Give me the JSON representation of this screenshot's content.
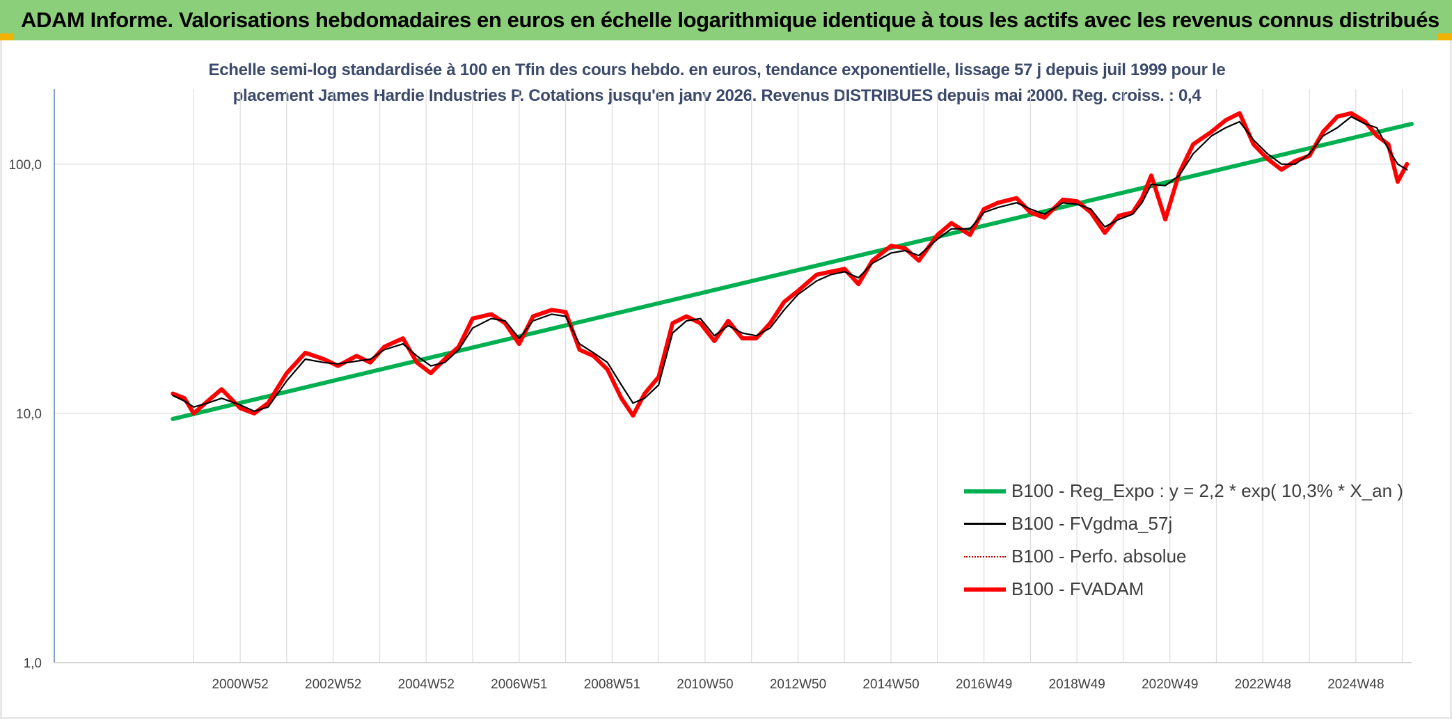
{
  "header": {
    "title": "ADAM Informe. Valorisations hebdomadaires en euros en échelle logarithmique identique à tous les actifs avec les revenus connus distribués"
  },
  "chart_data": {
    "type": "line",
    "title": "Echelle semi-log standardisée à 100 en Tfin des cours hebdo. en euros, tendance exponentielle, lissage 57 j depuis juil 1999 pour le",
    "subtitle": "placement James Hardie Industries P. Cotations jusqu'en janv 2026. Revenus DISTRIBUES depuis mai 2000. Reg. croiss. : 0,4",
    "y_scale": "log",
    "ylim": [
      1,
      200
    ],
    "xlim": [
      1996.0,
      2025.2
    ],
    "y_ticks": [
      {
        "value": 1,
        "label": "1,0"
      },
      {
        "value": 10,
        "label": "10,0"
      },
      {
        "value": 100,
        "label": "100,0"
      }
    ],
    "x_ticks": [
      {
        "value": 2000.0,
        "label": "2000W52"
      },
      {
        "value": 2002.0,
        "label": "2002W52"
      },
      {
        "value": 2004.0,
        "label": "2004W52"
      },
      {
        "value": 2006.0,
        "label": "2006W51"
      },
      {
        "value": 2008.0,
        "label": "2008W51"
      },
      {
        "value": 2010.0,
        "label": "2010W50"
      },
      {
        "value": 2012.0,
        "label": "2012W50"
      },
      {
        "value": 2014.0,
        "label": "2014W50"
      },
      {
        "value": 2016.0,
        "label": "2016W49"
      },
      {
        "value": 2018.0,
        "label": "2018W49"
      },
      {
        "value": 2020.0,
        "label": "2020W49"
      },
      {
        "value": 2022.0,
        "label": "2022W48"
      },
      {
        "value": 2024.0,
        "label": "2024W48"
      }
    ],
    "grid": "vertical and horizontal",
    "legend_position": "bottom-right",
    "series": [
      {
        "name": "B100 - Reg_Expo : y = 2,2 * exp( 10,3% *  X_an )",
        "color": "#00b050",
        "style": "solid-thick",
        "x": [
          1998.55,
          2025.2
        ],
        "y": [
          9.5,
          145
        ]
      },
      {
        "name": "B100 - FVgdma_57j",
        "color": "#000000",
        "style": "solid-thin",
        "x": [
          1998.55,
          1998.8,
          1999.0,
          1999.3,
          1999.6,
          2000.0,
          2000.3,
          2000.6,
          2001.0,
          2001.4,
          2001.8,
          2002.1,
          2002.5,
          2002.8,
          2003.1,
          2003.5,
          2003.8,
          2004.1,
          2004.4,
          2004.7,
          2005.0,
          2005.4,
          2005.7,
          2006.0,
          2006.3,
          2006.7,
          2007.0,
          2007.3,
          2007.6,
          2007.9,
          2008.2,
          2008.45,
          2008.7,
          2009.0,
          2009.3,
          2009.6,
          2009.9,
          2010.2,
          2010.5,
          2010.8,
          2011.1,
          2011.4,
          2011.7,
          2012.0,
          2012.4,
          2012.7,
          2013.0,
          2013.3,
          2013.6,
          2014.0,
          2014.3,
          2014.6,
          2015.0,
          2015.3,
          2015.7,
          2016.0,
          2016.3,
          2016.7,
          2017.0,
          2017.3,
          2017.7,
          2018.0,
          2018.3,
          2018.6,
          2018.9,
          2019.2,
          2019.4,
          2019.6,
          2019.9,
          2020.2,
          2020.5,
          2020.9,
          2021.2,
          2021.5,
          2021.8,
          2022.1,
          2022.4,
          2022.7,
          2023.0,
          2023.3,
          2023.6,
          2023.9,
          2024.2,
          2024.45,
          2024.7,
          2024.9,
          2025.1
        ],
        "y": [
          11.8,
          11.2,
          10.6,
          11.0,
          11.5,
          10.8,
          10.2,
          10.6,
          13.5,
          16.5,
          16.0,
          15.8,
          16.2,
          16.5,
          18.0,
          19.0,
          17.0,
          15.5,
          16.0,
          18.0,
          22.0,
          24.0,
          23.5,
          20.0,
          23.5,
          25.0,
          24.5,
          19.0,
          17.5,
          16.0,
          13.0,
          11.0,
          11.5,
          13.0,
          21.0,
          23.5,
          24.0,
          20.5,
          22.5,
          21.0,
          20.5,
          22.0,
          26.0,
          30.0,
          34.0,
          36.0,
          37.0,
          35.0,
          40.0,
          44.0,
          45.0,
          43.0,
          50.0,
          55.0,
          55.0,
          64.0,
          67.0,
          70.0,
          66.0,
          63.0,
          70.0,
          69.0,
          66.0,
          56.0,
          60.0,
          63.0,
          70.0,
          83.0,
          82.0,
          90.0,
          110.0,
          130.0,
          140.0,
          148.0,
          125.0,
          110.0,
          100.0,
          100.0,
          110.0,
          130.0,
          140.0,
          155.0,
          145.0,
          140.0,
          115.0,
          100.0,
          95.0
        ]
      },
      {
        "name": "B100 - Perfo. absolue",
        "color": "#c00000",
        "style": "dotted",
        "x": [
          1998.55,
          1998.8,
          1999.0,
          1999.3,
          1999.6,
          2000.0,
          2000.3,
          2000.6,
          2001.0,
          2001.4,
          2001.8,
          2002.1,
          2002.5,
          2002.8,
          2003.1,
          2003.5,
          2003.8,
          2004.1,
          2004.4,
          2004.7,
          2005.0,
          2005.4,
          2005.7,
          2006.0,
          2006.3,
          2006.7,
          2007.0,
          2007.3,
          2007.6,
          2007.9,
          2008.2,
          2008.45,
          2008.7,
          2009.0,
          2009.3,
          2009.6,
          2009.9,
          2010.2,
          2010.5,
          2010.8,
          2011.1,
          2011.4,
          2011.7,
          2012.0,
          2012.4,
          2012.7,
          2013.0,
          2013.3,
          2013.6,
          2014.0,
          2014.3,
          2014.6,
          2015.0,
          2015.3,
          2015.7,
          2016.0,
          2016.3,
          2016.7,
          2017.0,
          2017.3,
          2017.7,
          2018.0,
          2018.3,
          2018.6,
          2018.9,
          2019.2,
          2019.4,
          2019.6,
          2019.9,
          2020.2,
          2020.5,
          2020.9,
          2021.2,
          2021.5,
          2021.8,
          2022.1,
          2022.4,
          2022.7,
          2023.0,
          2023.3,
          2023.6,
          2023.9,
          2024.2,
          2024.45,
          2024.7,
          2024.9,
          2025.1
        ],
        "y": [
          12.0,
          11.5,
          10.0,
          11.2,
          12.5,
          10.5,
          10.0,
          11.0,
          14.5,
          17.5,
          16.5,
          15.5,
          17.0,
          16.0,
          18.5,
          20.0,
          16.0,
          14.5,
          16.5,
          18.5,
          24.0,
          25.0,
          23.0,
          19.0,
          24.5,
          26.0,
          25.5,
          18.0,
          17.0,
          15.0,
          11.5,
          9.8,
          12.0,
          14.0,
          23.0,
          24.5,
          23.0,
          19.5,
          23.5,
          20.0,
          20.0,
          23.0,
          28.0,
          31.0,
          36.0,
          37.0,
          38.0,
          33.0,
          41.0,
          47.0,
          46.0,
          41.0,
          52.0,
          58.0,
          52.0,
          66.0,
          70.0,
          73.0,
          64.0,
          61.0,
          72.0,
          71.0,
          64.0,
          53.0,
          62.0,
          64.0,
          73.0,
          90.0,
          60.0,
          92.0,
          120.0,
          135.0,
          150.0,
          160.0,
          120.0,
          105.0,
          95.0,
          103.0,
          108.0,
          135.0,
          155.0,
          160.0,
          148.0,
          130.0,
          120.0,
          85.0,
          100.0
        ]
      },
      {
        "name": "B100 - FVADAM",
        "color": "#ff0000",
        "style": "solid-thick",
        "x": [
          1998.55,
          1998.8,
          1999.0,
          1999.3,
          1999.6,
          2000.0,
          2000.3,
          2000.6,
          2001.0,
          2001.4,
          2001.8,
          2002.1,
          2002.5,
          2002.8,
          2003.1,
          2003.5,
          2003.8,
          2004.1,
          2004.4,
          2004.7,
          2005.0,
          2005.4,
          2005.7,
          2006.0,
          2006.3,
          2006.7,
          2007.0,
          2007.3,
          2007.6,
          2007.9,
          2008.2,
          2008.45,
          2008.7,
          2009.0,
          2009.3,
          2009.6,
          2009.9,
          2010.2,
          2010.5,
          2010.8,
          2011.1,
          2011.4,
          2011.7,
          2012.0,
          2012.4,
          2012.7,
          2013.0,
          2013.3,
          2013.6,
          2014.0,
          2014.3,
          2014.6,
          2015.0,
          2015.3,
          2015.7,
          2016.0,
          2016.3,
          2016.7,
          2017.0,
          2017.3,
          2017.7,
          2018.0,
          2018.3,
          2018.6,
          2018.9,
          2019.2,
          2019.4,
          2019.6,
          2019.9,
          2020.2,
          2020.5,
          2020.9,
          2021.2,
          2021.5,
          2021.8,
          2022.1,
          2022.4,
          2022.7,
          2023.0,
          2023.3,
          2023.6,
          2023.9,
          2024.2,
          2024.45,
          2024.7,
          2024.9,
          2025.1
        ],
        "y": [
          12.0,
          11.5,
          10.0,
          11.2,
          12.5,
          10.5,
          10.0,
          11.0,
          14.5,
          17.5,
          16.5,
          15.5,
          17.0,
          16.0,
          18.5,
          20.0,
          16.0,
          14.5,
          16.5,
          18.5,
          24.0,
          25.0,
          23.0,
          19.0,
          24.5,
          26.0,
          25.5,
          18.0,
          17.0,
          15.0,
          11.5,
          9.8,
          12.0,
          14.0,
          23.0,
          24.5,
          23.0,
          19.5,
          23.5,
          20.0,
          20.0,
          23.0,
          28.0,
          31.0,
          36.0,
          37.0,
          38.0,
          33.0,
          41.0,
          47.0,
          46.0,
          41.0,
          52.0,
          58.0,
          52.0,
          66.0,
          70.0,
          73.0,
          64.0,
          61.0,
          72.0,
          71.0,
          64.0,
          53.0,
          62.0,
          64.0,
          73.0,
          90.0,
          60.0,
          92.0,
          120.0,
          135.0,
          150.0,
          160.0,
          120.0,
          105.0,
          95.0,
          103.0,
          108.0,
          135.0,
          155.0,
          160.0,
          148.0,
          130.0,
          120.0,
          85.0,
          100.0
        ]
      }
    ]
  }
}
